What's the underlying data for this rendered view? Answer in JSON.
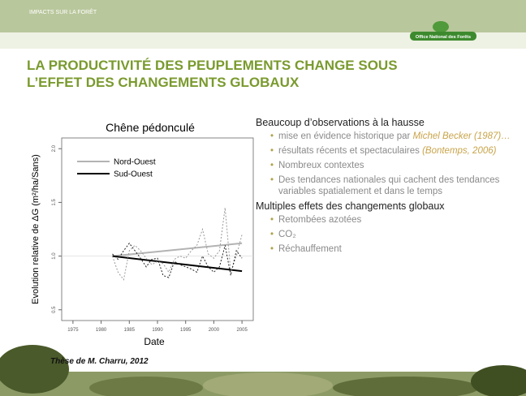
{
  "header": {
    "section": "IMPACTS SUR LA FORÊT",
    "logo": "Office National des Forêts"
  },
  "title": [
    "LA PRODUCTIVITÉ DES PEUPLEMENTS CHANGE SOUS",
    "L’EFFET DES CHANGEMENTS GLOBAUX"
  ],
  "chart_data": {
    "type": "line",
    "title": "Chêne pédonculé",
    "x_label": "Date",
    "y_label": "Evolution relative de ΔG (m²/ha/Sans)",
    "xlim": [
      1973,
      2007
    ],
    "xticks": [
      1975,
      1980,
      1985,
      1990,
      1995,
      2000,
      2005
    ],
    "ylim": [
      0.4,
      2.1
    ],
    "yticks": [
      0.5,
      {
        "value": 1,
        "label": "1.0"
      },
      1.5,
      {
        "value": 2,
        "label": "2.0"
      }
    ],
    "reference_line": 1,
    "legend": "top-left",
    "series": [
      {
        "name": "Nord-Ouest",
        "color": "#b3b3b3",
        "style": "solid",
        "x": [
          1982,
          2005
        ],
        "values": [
          1.0,
          1.12
        ]
      },
      {
        "name": "Sud-Ouest",
        "color": "#000000",
        "style": "solid",
        "x": [
          1982,
          2005
        ],
        "values": [
          1.0,
          0.86
        ]
      },
      {
        "color": "#999999",
        "style": "dotted",
        "x": [
          1982,
          1983,
          1984,
          1985,
          1986,
          1987,
          1988,
          1989,
          1990,
          1991,
          1992,
          1993,
          1994,
          1995,
          1996,
          1997,
          1998,
          1999,
          2000,
          2001,
          2002,
          2003,
          2004,
          2005
        ],
        "values": [
          1.0,
          0.85,
          0.78,
          1.05,
          1.1,
          1.05,
          0.98,
          0.92,
          0.95,
          0.93,
          0.85,
          0.97,
          1.0,
          0.98,
          1.05,
          1.1,
          1.25,
          1.02,
          0.98,
          1.05,
          1.45,
          0.85,
          1.0,
          1.2
        ]
      },
      {
        "color": "#222222",
        "style": "dotted",
        "x": [
          1982,
          1983,
          1984,
          1985,
          1986,
          1987,
          1988,
          1989,
          1990,
          1991,
          1992,
          1993,
          1994,
          1995,
          1996,
          1997,
          1998,
          1999,
          2000,
          2001,
          2002,
          2003,
          2004,
          2005
        ],
        "values": [
          1.02,
          0.97,
          1.05,
          1.12,
          1.05,
          0.98,
          0.9,
          0.97,
          0.98,
          0.82,
          0.8,
          0.95,
          0.92,
          0.9,
          0.88,
          0.85,
          1.0,
          0.9,
          0.85,
          0.9,
          1.1,
          0.82,
          1.05,
          0.98
        ]
      }
    ]
  },
  "content": [
    {
      "heading": "Beaucoup d’observations à la hausse",
      "items": [
        {
          "text": "mise en évidence historique par ",
          "emphasis": "Michel Becker (1987)…"
        },
        {
          "text": "résultats récents et spectaculaires ",
          "emphasis": "(Bontemps, 2006)"
        },
        {
          "text": "Nombreux contextes"
        },
        {
          "text": "Des tendances nationales qui cachent des tendances variables spatialement et dans le temps"
        }
      ]
    },
    {
      "heading": "Multiples effets des changements globaux",
      "items": [
        {
          "text": "Retombées azotées"
        },
        {
          "text": "CO₂"
        },
        {
          "text": "Réchauffement"
        }
      ]
    }
  ],
  "source": "Thèse de M. Charru, 2012"
}
